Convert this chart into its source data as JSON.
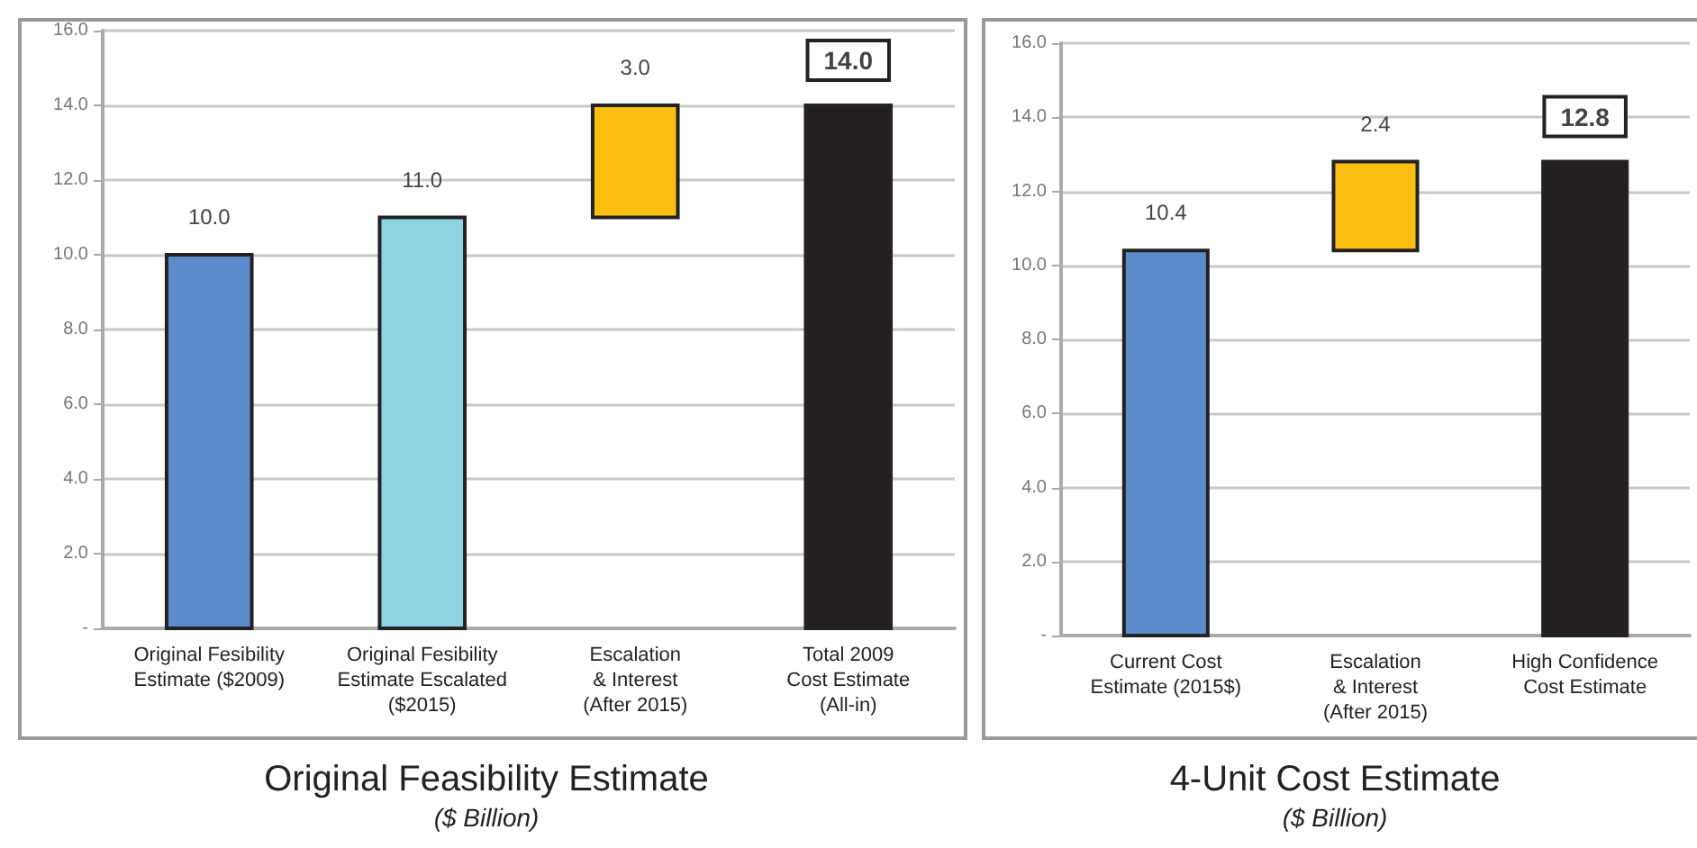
{
  "chart_data": [
    {
      "type": "bar",
      "title": "Original Feasibility Estimate",
      "subtitle": "($ Billion)",
      "categories": [
        "Original Fesibility\nEstimate ($2009)",
        "Original Fesibility\nEstimate Escalated\n($2015)",
        "Escalation\n& Interest\n(After 2015)",
        "Total 2009\nCost Estimate\n(All-in)"
      ],
      "values": [
        10,
        11,
        3,
        14
      ],
      "base": [
        0,
        0,
        11,
        0
      ],
      "colors": [
        "#5b8bca",
        "#8dd3df",
        "#fbbf12",
        "#231f20"
      ],
      "value_labels": [
        "10.0",
        "11.0",
        "3.0",
        "14.0"
      ],
      "ylim": [
        0,
        16
      ],
      "yticks": [
        {
          "value": 0,
          "label": "-"
        },
        {
          "value": 2,
          "label": "2.0"
        },
        {
          "value": 4,
          "label": "4.0"
        },
        {
          "value": 6,
          "label": "6.0"
        },
        {
          "value": 8,
          "label": "8.0"
        },
        {
          "value": 10,
          "label": "10.0"
        },
        {
          "value": 12,
          "label": "12.0"
        },
        {
          "value": 14,
          "label": "14.0"
        },
        {
          "value": 16,
          "label": "16.0"
        }
      ],
      "grid": "y"
    },
    {
      "type": "bar",
      "title": "4-Unit Cost Estimate",
      "subtitle": "($ Billion)",
      "categories": [
        "Current Cost\nEstimate (2015$)",
        "Escalation\n& Interest\n(After 2015)",
        "High Confidence\nCost Estimate"
      ],
      "values": [
        10.4,
        2.4,
        12.8
      ],
      "base": [
        0,
        10.4,
        0
      ],
      "colors": [
        "#5b8bca",
        "#fbbf12",
        "#231f20"
      ],
      "value_labels": [
        "10.4",
        "2.4",
        "12.8"
      ],
      "ylim": [
        0,
        16
      ],
      "yticks": [
        {
          "value": 0,
          "label": "-"
        },
        {
          "value": 2,
          "label": "2.0"
        },
        {
          "value": 4,
          "label": "4.0"
        },
        {
          "value": 6,
          "label": "6.0"
        },
        {
          "value": 8,
          "label": "8.0"
        },
        {
          "value": 10,
          "label": "10.0"
        },
        {
          "value": 12,
          "label": "12.0"
        },
        {
          "value": 14,
          "label": "14.0"
        },
        {
          "value": 16,
          "label": "16.0"
        }
      ],
      "grid": "y"
    }
  ]
}
